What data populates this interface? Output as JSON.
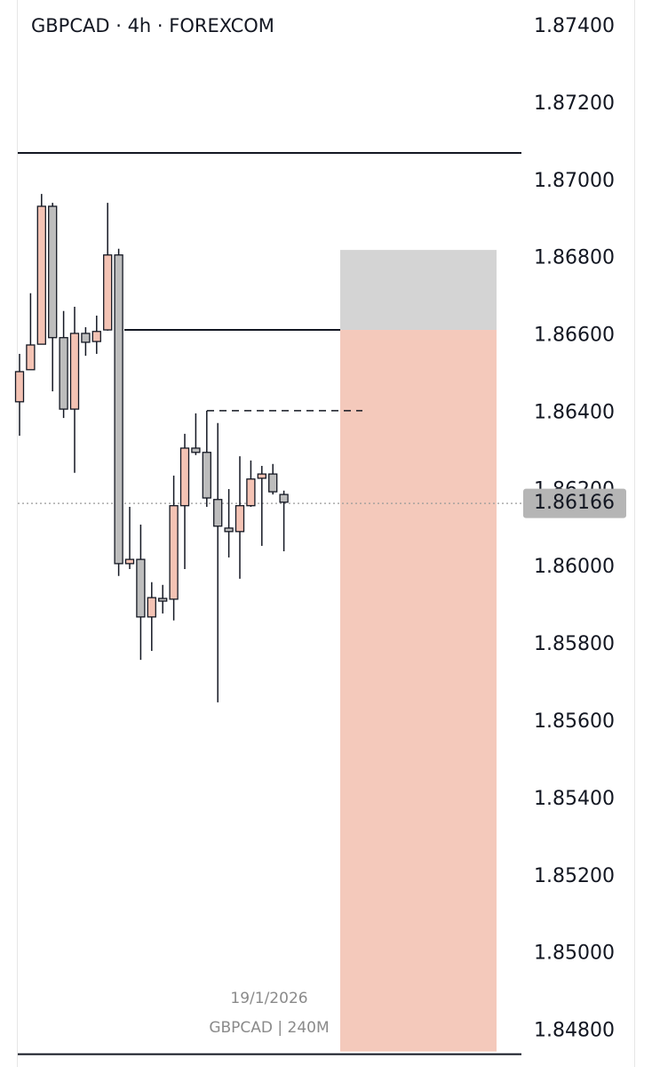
{
  "chart_data": {
    "type": "candlestick",
    "title": "GBPCAD · 4h · FOREXCOM",
    "date_label": "19/1/2026",
    "footer_label": "GBPCAD | 240M",
    "up_color": "#f4c3b4",
    "down_color": "#bdbdbd",
    "candles": [
      {
        "open": 1.86429,
        "high": 1.86553,
        "low": 1.86341,
        "close": 1.86507
      },
      {
        "open": 1.86512,
        "high": 1.8671,
        "low": 1.86512,
        "close": 1.86576
      },
      {
        "open": 1.86578,
        "high": 1.86967,
        "low": 1.86578,
        "close": 1.86935
      },
      {
        "open": 1.86935,
        "high": 1.86944,
        "low": 1.86456,
        "close": 1.86595
      },
      {
        "open": 1.86595,
        "high": 1.86664,
        "low": 1.86387,
        "close": 1.8641
      },
      {
        "open": 1.8641,
        "high": 1.86675,
        "low": 1.86245,
        "close": 1.86606
      },
      {
        "open": 1.86606,
        "high": 1.86622,
        "low": 1.86548,
        "close": 1.86583
      },
      {
        "open": 1.86585,
        "high": 1.86652,
        "low": 1.86553,
        "close": 1.86611
      },
      {
        "open": 1.86615,
        "high": 1.86944,
        "low": 1.86613,
        "close": 1.86809
      },
      {
        "open": 1.86809,
        "high": 1.86825,
        "low": 1.85978,
        "close": 1.8601
      },
      {
        "open": 1.8601,
        "high": 1.86157,
        "low": 1.85996,
        "close": 1.86021
      },
      {
        "open": 1.86021,
        "high": 1.86111,
        "low": 1.85761,
        "close": 1.85872
      },
      {
        "open": 1.85872,
        "high": 1.85962,
        "low": 1.85784,
        "close": 1.85922
      },
      {
        "open": 1.8592,
        "high": 1.85955,
        "low": 1.85881,
        "close": 1.85913
      },
      {
        "open": 1.85918,
        "high": 1.86238,
        "low": 1.85863,
        "close": 1.8616
      },
      {
        "open": 1.8616,
        "high": 1.86346,
        "low": 1.85996,
        "close": 1.86309
      },
      {
        "open": 1.86309,
        "high": 1.86399,
        "low": 1.86291,
        "close": 1.86298
      },
      {
        "open": 1.86298,
        "high": 1.86406,
        "low": 1.86157,
        "close": 1.8618
      },
      {
        "open": 1.86176,
        "high": 1.86374,
        "low": 1.85651,
        "close": 1.86107
      },
      {
        "open": 1.86102,
        "high": 1.86203,
        "low": 1.86026,
        "close": 1.86093
      },
      {
        "open": 1.86093,
        "high": 1.86288,
        "low": 1.85971,
        "close": 1.8616
      },
      {
        "open": 1.8616,
        "high": 1.86277,
        "low": 1.86157,
        "close": 1.86229
      },
      {
        "open": 1.86231,
        "high": 1.86263,
        "low": 1.86056,
        "close": 1.86242
      },
      {
        "open": 1.86242,
        "high": 1.86268,
        "low": 1.86189,
        "close": 1.86196
      },
      {
        "open": 1.86189,
        "high": 1.86199,
        "low": 1.86042,
        "close": 1.86169
      }
    ],
    "lines": [
      {
        "value": 1.87073,
        "style": "solid"
      },
      {
        "value": 1.86615,
        "style": "solid"
      },
      {
        "value": 1.86406,
        "style": "dashed"
      },
      {
        "value": 1.8474,
        "style": "solid"
      }
    ],
    "zones": [
      {
        "from": 1.86615,
        "to": 1.86822,
        "color": "#d4d4d4"
      },
      {
        "from": 1.84747,
        "to": 1.86615,
        "color": "#f4c9bb"
      }
    ],
    "last_price": 1.86166,
    "ylim": [
      1.84707,
      1.87469
    ],
    "yticks": [
      {
        "value": 1.874,
        "label": "1.87400"
      },
      {
        "value": 1.872,
        "label": "1.87200"
      },
      {
        "value": 1.87,
        "label": "1.87000"
      },
      {
        "value": 1.868,
        "label": "1.86800"
      },
      {
        "value": 1.866,
        "label": "1.86600"
      },
      {
        "value": 1.864,
        "label": "1.86400"
      },
      {
        "value": 1.862,
        "label": "1.86200"
      },
      {
        "value": 1.86,
        "label": "1.86000"
      },
      {
        "value": 1.858,
        "label": "1.85800"
      },
      {
        "value": 1.856,
        "label": "1.85600"
      },
      {
        "value": 1.854,
        "label": "1.85400"
      },
      {
        "value": 1.852,
        "label": "1.85200"
      },
      {
        "value": 1.85,
        "label": "1.85000"
      },
      {
        "value": 1.848,
        "label": "1.84800"
      }
    ]
  }
}
